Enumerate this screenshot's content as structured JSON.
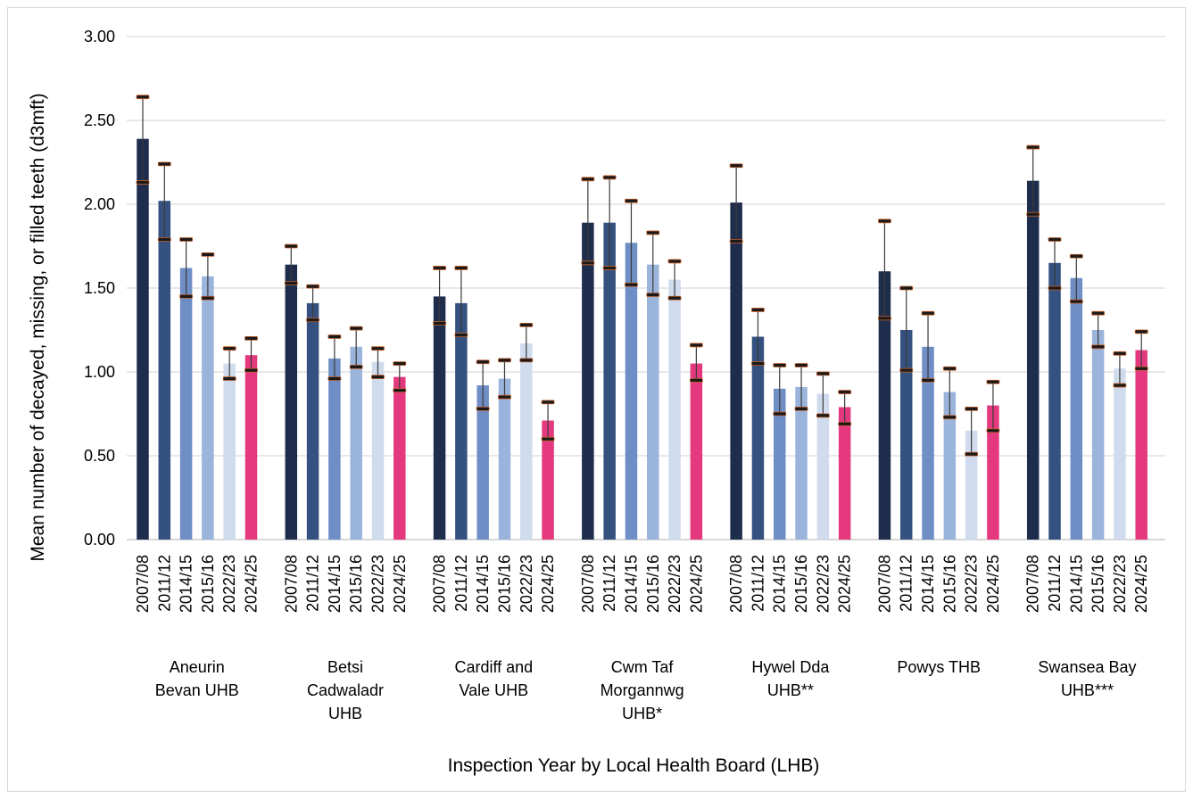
{
  "chart_data": {
    "type": "bar",
    "title": "",
    "xlabel": "Inspection Year by Local Health Board (LHB)",
    "ylabel": "Mean number of decayed, missing, or filled teeth (d3mft)",
    "ylim": [
      0,
      3
    ],
    "yticks": [
      "0.00",
      "0.50",
      "1.00",
      "1.50",
      "2.00",
      "2.50",
      "3.00"
    ],
    "grid": true,
    "legend": "none",
    "years": [
      "2007/08",
      "2011/12",
      "2014/15",
      "2015/16",
      "2022/23",
      "2024/25"
    ],
    "colors": [
      "#1f2d4d",
      "#34517f",
      "#6f8ec6",
      "#9bb4dc",
      "#d0dcee",
      "#e4397f"
    ],
    "groups": [
      {
        "label": [
          "Aneurin",
          "Bevan UHB"
        ],
        "values": [
          2.39,
          2.02,
          1.62,
          1.57,
          1.05,
          1.1
        ],
        "lower": [
          2.13,
          1.79,
          1.45,
          1.44,
          0.96,
          1.01
        ],
        "upper": [
          2.64,
          2.24,
          1.79,
          1.7,
          1.14,
          1.2
        ]
      },
      {
        "label": [
          "Betsi",
          "Cadwaladr",
          "UHB"
        ],
        "values": [
          1.64,
          1.41,
          1.08,
          1.15,
          1.06,
          0.97
        ],
        "lower": [
          1.53,
          1.31,
          0.96,
          1.03,
          0.97,
          0.89
        ],
        "upper": [
          1.75,
          1.51,
          1.21,
          1.26,
          1.14,
          1.05
        ]
      },
      {
        "label": [
          "Cardiff and",
          "Vale UHB"
        ],
        "values": [
          1.45,
          1.41,
          0.92,
          0.96,
          1.17,
          0.71
        ],
        "lower": [
          1.29,
          1.22,
          0.78,
          0.85,
          1.07,
          0.6
        ],
        "upper": [
          1.62,
          1.62,
          1.06,
          1.07,
          1.28,
          0.82
        ]
      },
      {
        "label": [
          "Cwm Taf",
          "Morgannwg",
          "UHB*"
        ],
        "values": [
          1.89,
          1.89,
          1.77,
          1.64,
          1.55,
          1.05
        ],
        "lower": [
          1.65,
          1.62,
          1.52,
          1.46,
          1.44,
          0.95
        ],
        "upper": [
          2.15,
          2.16,
          2.02,
          1.83,
          1.66,
          1.16
        ]
      },
      {
        "label": [
          "Hywel Dda",
          "UHB**"
        ],
        "values": [
          2.01,
          1.21,
          0.9,
          0.91,
          0.87,
          0.79
        ],
        "lower": [
          1.78,
          1.05,
          0.75,
          0.78,
          0.74,
          0.69
        ],
        "upper": [
          2.23,
          1.37,
          1.04,
          1.04,
          0.99,
          0.88
        ]
      },
      {
        "label": [
          "Powys THB"
        ],
        "values": [
          1.6,
          1.25,
          1.15,
          0.88,
          0.65,
          0.8
        ],
        "lower": [
          1.32,
          1.01,
          0.95,
          0.73,
          0.51,
          0.65
        ],
        "upper": [
          1.9,
          1.5,
          1.35,
          1.02,
          0.78,
          0.94
        ]
      },
      {
        "label": [
          "Swansea Bay",
          "UHB***"
        ],
        "values": [
          2.14,
          1.65,
          1.56,
          1.25,
          1.02,
          1.13
        ],
        "lower": [
          1.94,
          1.5,
          1.42,
          1.15,
          0.92,
          1.02
        ],
        "upper": [
          2.34,
          1.79,
          1.69,
          1.35,
          1.11,
          1.24
        ]
      }
    ]
  }
}
